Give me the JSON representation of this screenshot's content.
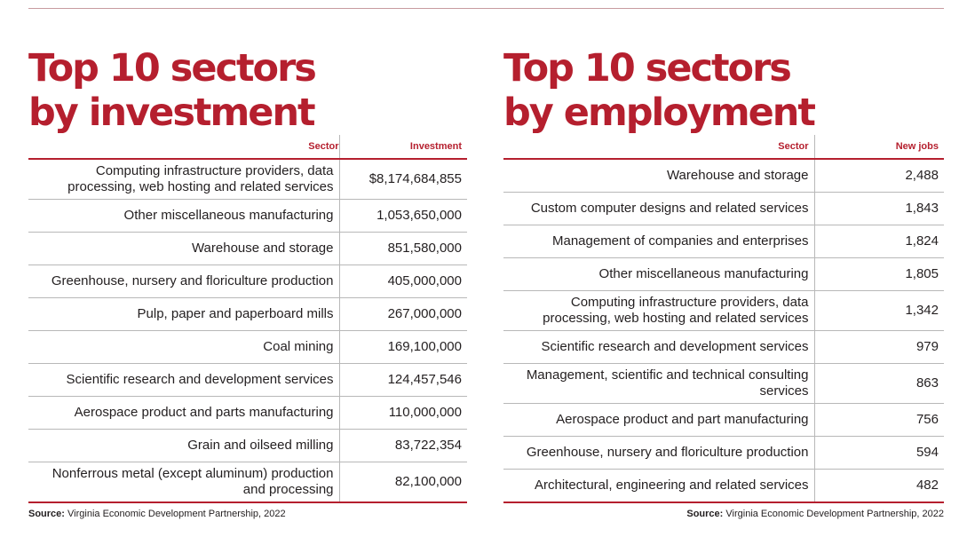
{
  "left": {
    "title_line1": "Top 10 sectors",
    "title_line2": "by investment",
    "col_sector": "Sector",
    "col_value": "Investment",
    "rows": [
      {
        "sector": "Computing infrastructure providers, data processing, web hosting and related services",
        "value": "$8,174,684,855"
      },
      {
        "sector": "Other miscellaneous manufacturing",
        "value": "1,053,650,000"
      },
      {
        "sector": "Warehouse and storage",
        "value": "851,580,000"
      },
      {
        "sector": "Greenhouse, nursery and floriculture production",
        "value": "405,000,000"
      },
      {
        "sector": "Pulp, paper and paperboard mills",
        "value": "267,000,000"
      },
      {
        "sector": "Coal mining",
        "value": "169,100,000"
      },
      {
        "sector": "Scientific research and development services",
        "value": "124,457,546"
      },
      {
        "sector": "Aerospace product and parts manufacturing",
        "value": "110,000,000"
      },
      {
        "sector": "Grain and oilseed milling",
        "value": "83,722,354"
      },
      {
        "sector": "Nonferrous metal (except aluminum) production and processing",
        "value": "82,100,000"
      }
    ],
    "source_label": "Source:",
    "source_text": "Virginia Economic Development Partnership, 2022"
  },
  "right": {
    "title_line1": "Top 10 sectors",
    "title_line2": "by employment",
    "col_sector": "Sector",
    "col_value": "New jobs",
    "rows": [
      {
        "sector": "Warehouse and storage",
        "value": "2,488"
      },
      {
        "sector": "Custom computer designs and related services",
        "value": "1,843"
      },
      {
        "sector": "Management of companies and enterprises",
        "value": "1,824"
      },
      {
        "sector": "Other miscellaneous manufacturing",
        "value": "1,805"
      },
      {
        "sector": "Computing infrastructure providers, data processing, web hosting and related services",
        "value": "1,342"
      },
      {
        "sector": "Scientific research and development services",
        "value": "979"
      },
      {
        "sector": "Management, scientific and technical consulting services",
        "value": "863"
      },
      {
        "sector": "Aerospace product and part manufacturing",
        "value": "756"
      },
      {
        "sector": "Greenhouse, nursery and floriculture production",
        "value": "594"
      },
      {
        "sector": "Architectural, engineering and related services",
        "value": "482"
      }
    ],
    "source_label": "Source:",
    "source_text": "Virginia Economic Development Partnership, 2022"
  },
  "colors": {
    "accent": "#b51f2e",
    "text": "#231f20",
    "rule": "#b8b8b8"
  }
}
